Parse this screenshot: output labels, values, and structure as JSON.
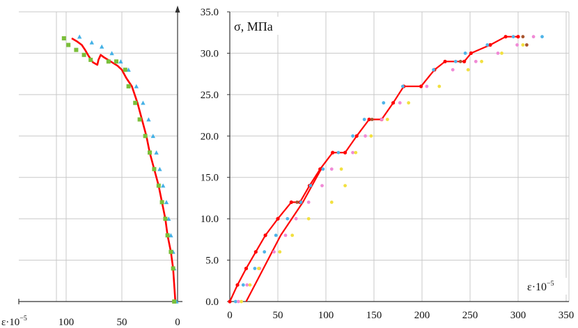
{
  "chart_data": [
    {
      "type": "scatter",
      "id": "lateral-strain",
      "xlabel": "ε·10⁻⁵",
      "xlabel_base": "ε·10",
      "xlabel_exp": "−5",
      "xlim": [
        0,
        110
      ],
      "x_reversed": true,
      "ylim": [
        0,
        35
      ],
      "x_ticks": [
        100,
        50,
        0
      ],
      "x_tick_labels": [
        "100",
        "50",
        "0"
      ],
      "y_gridlines": [
        0,
        5,
        10,
        15,
        20,
        25,
        30,
        35
      ],
      "grid": true,
      "series": [
        {
          "color": "#ff0000",
          "marker": "line",
          "points": [
            [
              2,
              0
            ],
            [
              3,
              2
            ],
            [
              4,
              4
            ],
            [
              6,
              6
            ],
            [
              9,
              8
            ],
            [
              11,
              10
            ],
            [
              14,
              12
            ],
            [
              17,
              14
            ],
            [
              21,
              16
            ],
            [
              25,
              18
            ],
            [
              28,
              20
            ],
            [
              32,
              22
            ],
            [
              36,
              24
            ],
            [
              41,
              26
            ],
            [
              46,
              27
            ],
            [
              50,
              28
            ],
            [
              54,
              28.5
            ],
            [
              60,
              29
            ],
            [
              66,
              29.5
            ],
            [
              69,
              29.8
            ],
            [
              71,
              29.2
            ],
            [
              72,
              28.6
            ],
            [
              76,
              28.9
            ],
            [
              80,
              29.7
            ],
            [
              83,
              30.4
            ],
            [
              86,
              31
            ],
            [
              90,
              31.4
            ],
            [
              95,
              31.8
            ]
          ]
        },
        {
          "color": "#44b1e6",
          "marker": "triangle",
          "points": [
            [
              1,
              0
            ],
            [
              3,
              4
            ],
            [
              4,
              6
            ],
            [
              6,
              8
            ],
            [
              8,
              10
            ],
            [
              10,
              12
            ],
            [
              13,
              14
            ],
            [
              16,
              16
            ],
            [
              19,
              18
            ],
            [
              22,
              20
            ],
            [
              26,
              22
            ],
            [
              31,
              24
            ],
            [
              37,
              26
            ],
            [
              44,
              28
            ],
            [
              51,
              29
            ],
            [
              59,
              30
            ],
            [
              68,
              30.8
            ],
            [
              77,
              31.3
            ],
            [
              88,
              32
            ]
          ]
        },
        {
          "color": "#7bbf3a",
          "marker": "square",
          "points": [
            [
              3,
              0
            ],
            [
              4,
              4
            ],
            [
              6,
              6
            ],
            [
              9,
              8
            ],
            [
              11,
              10
            ],
            [
              14,
              12
            ],
            [
              17,
              14
            ],
            [
              21,
              16
            ],
            [
              25,
              18
            ],
            [
              29,
              20
            ],
            [
              34,
              22
            ],
            [
              38,
              24
            ],
            [
              44,
              26
            ],
            [
              47,
              28
            ],
            [
              55,
              29
            ],
            [
              62,
              29
            ],
            [
              78,
              29.2
            ],
            [
              84,
              29.8
            ],
            [
              91,
              30.4
            ],
            [
              98,
              31
            ],
            [
              102,
              31.8
            ]
          ]
        }
      ]
    },
    {
      "type": "scatter",
      "id": "longitudinal-strain",
      "ylabel": "σ, МПа",
      "xlabel": "ε·10⁻⁵",
      "xlabel_base": "ε·10",
      "xlabel_exp": "−5",
      "xlim": [
        0,
        360
      ],
      "ylim": [
        0,
        35
      ],
      "x_ticks": [
        0,
        50,
        100,
        150,
        200,
        250,
        300,
        350
      ],
      "x_tick_labels": [
        "0",
        "50",
        "100",
        "150",
        "200",
        "250",
        "300",
        "350"
      ],
      "y_ticks": [
        0,
        5,
        10,
        15,
        20,
        25,
        30,
        35
      ],
      "y_tick_labels": [
        "0.0",
        "5.0",
        "10.0",
        "15.0",
        "20.0",
        "25.0",
        "30.0",
        "35.0"
      ],
      "grid": true,
      "series": [
        {
          "color": "#ff0000",
          "marker": "line-dot",
          "points": [
            [
              0,
              0
            ],
            [
              8,
              2
            ],
            [
              17,
              4
            ],
            [
              27,
              6
            ],
            [
              37,
              8
            ],
            [
              50,
              10
            ],
            [
              64,
              12
            ],
            [
              73,
              12
            ],
            [
              83,
              14
            ],
            [
              94,
              16
            ],
            [
              107,
              18
            ],
            [
              120,
              18
            ],
            [
              132,
              20
            ],
            [
              145,
              22
            ],
            [
              158,
              22
            ],
            [
              170,
              24
            ],
            [
              181,
              26
            ],
            [
              199,
              26
            ],
            [
              213,
              28
            ],
            [
              224,
              29
            ],
            [
              244,
              29
            ],
            [
              251,
              30
            ],
            [
              271,
              31
            ],
            [
              287,
              32
            ],
            [
              300,
              32
            ]
          ]
        },
        {
          "color": "#ff0000",
          "marker": "line",
          "points": [
            [
              17,
              0
            ],
            [
              35,
              4
            ],
            [
              53,
              8
            ],
            [
              76,
              12
            ],
            [
              95,
              16
            ]
          ]
        },
        {
          "color": "#4fb4e8",
          "marker": "dot",
          "points": [
            [
              6,
              0
            ],
            [
              14,
              2
            ],
            [
              26,
              4
            ],
            [
              36,
              6
            ],
            [
              48,
              8
            ],
            [
              60,
              10
            ],
            [
              74,
              12
            ],
            [
              84,
              14
            ],
            [
              97,
              16
            ],
            [
              113,
              18
            ],
            [
              128,
              20
            ],
            [
              140,
              22
            ],
            [
              160,
              24
            ],
            [
              180,
              26
            ],
            [
              212,
              28
            ],
            [
              235,
              29
            ],
            [
              245,
              30
            ],
            [
              268,
              31
            ],
            [
              295,
              32
            ],
            [
              325,
              32
            ]
          ]
        },
        {
          "color": "#f08ad6",
          "marker": "dot",
          "points": [
            [
              9,
              0
            ],
            [
              18,
              2
            ],
            [
              31,
              4
            ],
            [
              46,
              6
            ],
            [
              58,
              8
            ],
            [
              69,
              10
            ],
            [
              82,
              12
            ],
            [
              96,
              14
            ],
            [
              106,
              16
            ],
            [
              128,
              18
            ],
            [
              141,
              20
            ],
            [
              158,
              22
            ],
            [
              177,
              24
            ],
            [
              205,
              26
            ],
            [
              232,
              28
            ],
            [
              256,
              29
            ],
            [
              279,
              30
            ],
            [
              299,
              31
            ],
            [
              316,
              32
            ]
          ]
        },
        {
          "color": "#f2e040",
          "marker": "dot",
          "points": [
            [
              12,
              0
            ],
            [
              21,
              2
            ],
            [
              30,
              4
            ],
            [
              52,
              6
            ],
            [
              65,
              8
            ],
            [
              82,
              10
            ],
            [
              106,
              12
            ],
            [
              120,
              14
            ],
            [
              116,
              16
            ],
            [
              131,
              18
            ],
            [
              147,
              20
            ],
            [
              164,
              22
            ],
            [
              186,
              24
            ],
            [
              218,
              26
            ],
            [
              248,
              28
            ],
            [
              262,
              29
            ],
            [
              283,
              30
            ],
            [
              305,
              31
            ]
          ]
        },
        {
          "color": "#a8552e",
          "marker": "dot",
          "points": [
            [
              70,
              12
            ],
            [
              148,
              22
            ],
            [
              240,
              29
            ],
            [
              309,
              31
            ],
            [
              305,
              32
            ]
          ]
        }
      ]
    }
  ]
}
